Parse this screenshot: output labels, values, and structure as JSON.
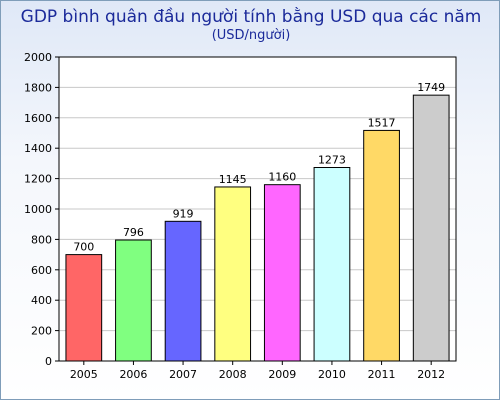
{
  "chart_data": {
    "type": "bar",
    "title": "GDP bình quân đầu người tính bằng USD qua các năm",
    "subtitle": "(USD/người)",
    "categories": [
      "2005",
      "2006",
      "2007",
      "2008",
      "2009",
      "2010",
      "2011",
      "2012"
    ],
    "values": [
      700,
      796,
      919,
      1145,
      1160,
      1273,
      1517,
      1749
    ],
    "data_labels": [
      "700",
      "796",
      "919",
      "1145",
      "1160",
      "1273",
      "1517",
      "1749"
    ],
    "bar_colors": [
      "#ff6666",
      "#80ff80",
      "#6666ff",
      "#ffff80",
      "#ff66ff",
      "#ccffff",
      "#ffd966",
      "#cccccc"
    ],
    "ylim": [
      0,
      2000
    ],
    "yticks": [
      0,
      200,
      400,
      600,
      800,
      1000,
      1200,
      1400,
      1600,
      1800,
      2000
    ],
    "grid": true,
    "xlabel": "",
    "ylabel": ""
  }
}
